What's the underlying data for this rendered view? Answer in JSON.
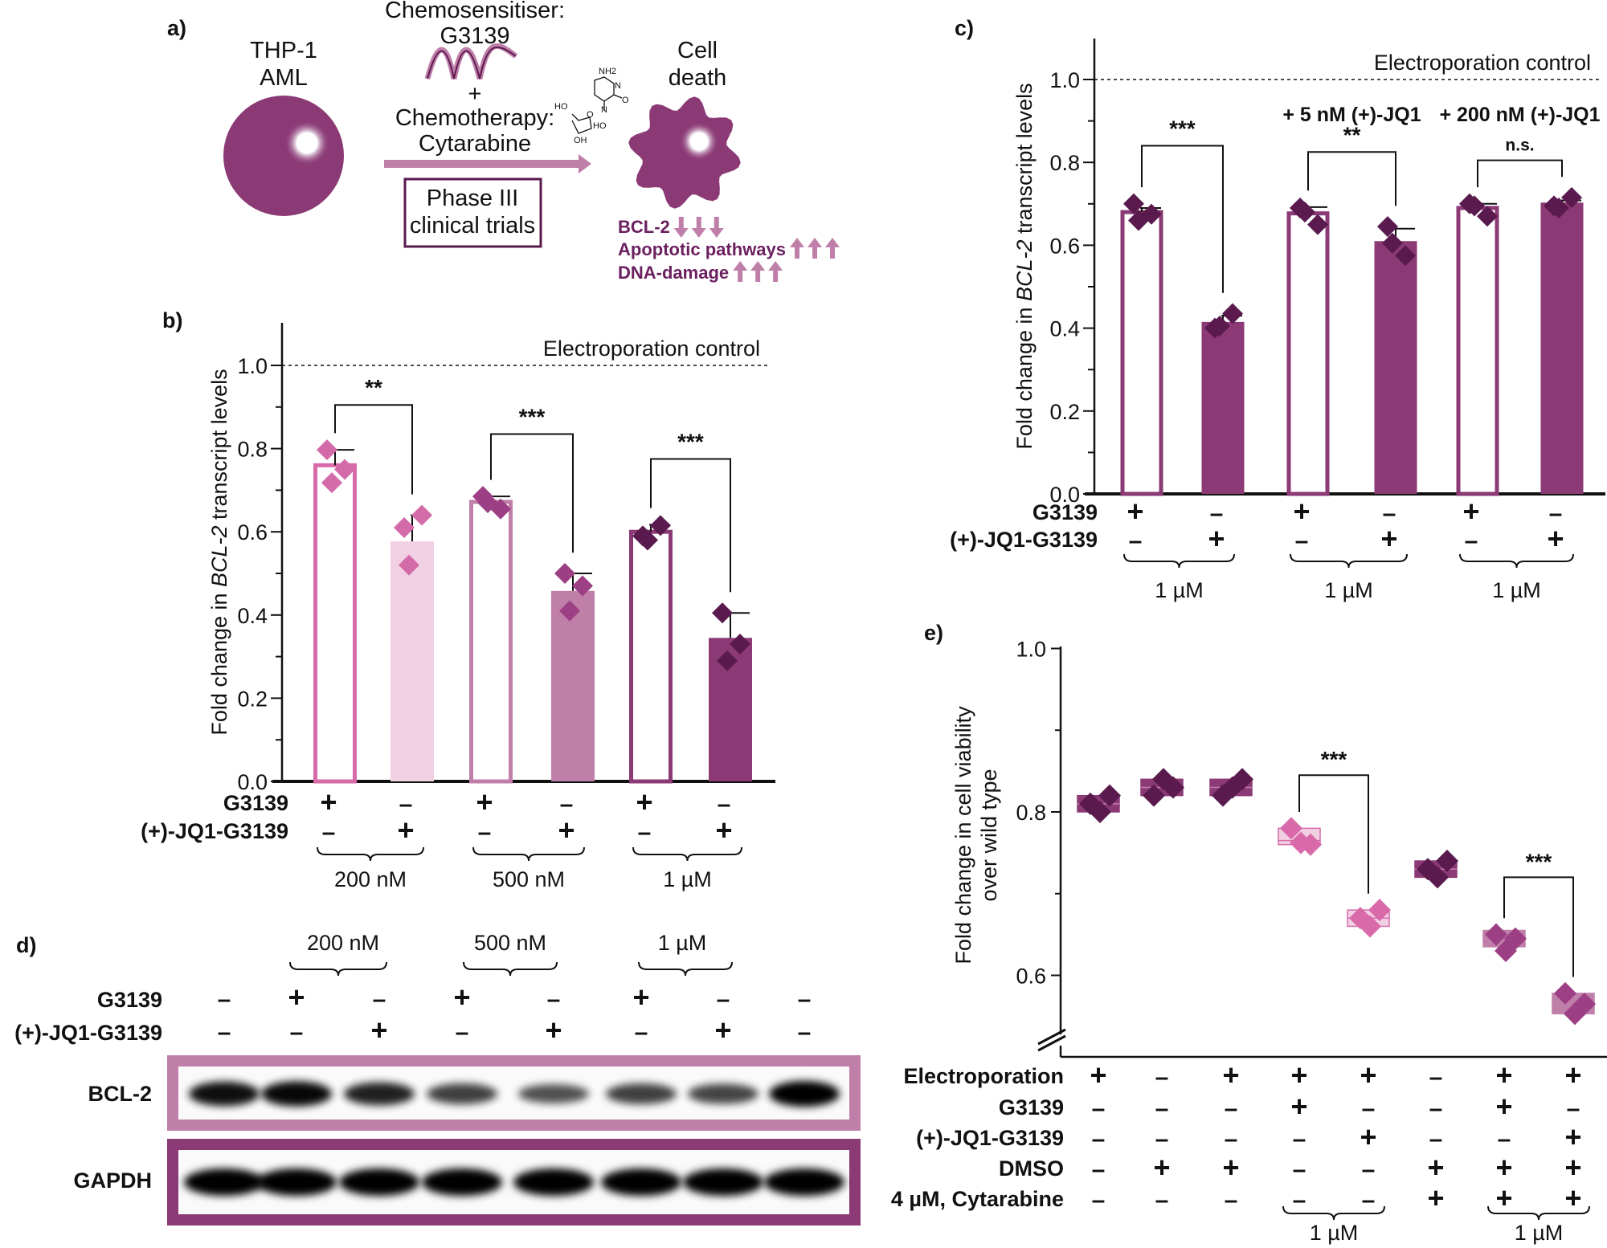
{
  "colors": {
    "light_pink": "#d96aaa",
    "pale_pink": "#f2d0e4",
    "mauve": "#c07fa9",
    "plum": "#8b3a76",
    "dark_plum": "#5a1a4e",
    "diamond_pink": "#d36ba9",
    "diamond_mauve": "#9c3f84",
    "text_plum": "#6b1f5f"
  },
  "panel_a": {
    "label": "a)",
    "cell_line": [
      "THP-1",
      "AML"
    ],
    "chemosensitiser_title": "Chemosensitiser:",
    "chemosensitiser": "G3139",
    "plus": "+",
    "chemotherapy_title": "Chemotherapy:",
    "chemotherapy": "Cytarabine",
    "trial_box": [
      "Phase III",
      "clinical trials"
    ],
    "outcome": [
      "Cell",
      "death"
    ],
    "molecule_labels": {
      "nh2": "NH2",
      "n1": "N",
      "n2": "N",
      "o_keto": "O",
      "ho1": "HO",
      "o_ring": "O",
      "ho2": "HO",
      "oh": "OH"
    },
    "effects": [
      {
        "text": "BCL-2",
        "direction": "down"
      },
      {
        "text": "Apoptotic pathways",
        "direction": "up"
      },
      {
        "text": "DNA-damage",
        "direction": "up"
      }
    ]
  },
  "panel_d": {
    "label": "d)",
    "concentrations": [
      "200 nM",
      "500 nM",
      "1 µM"
    ],
    "row_labels": [
      "G3139",
      "(+)-JQ1-G3139"
    ],
    "lanes": [
      {
        "g3139": "-",
        "jq1": "-",
        "bcl2_intensity": 0.9
      },
      {
        "g3139": "+",
        "jq1": "-",
        "bcl2_intensity": 0.95
      },
      {
        "g3139": "-",
        "jq1": "+",
        "bcl2_intensity": 0.8
      },
      {
        "g3139": "+",
        "jq1": "-",
        "bcl2_intensity": 0.62
      },
      {
        "g3139": "-",
        "jq1": "+",
        "bcl2_intensity": 0.5
      },
      {
        "g3139": "+",
        "jq1": "-",
        "bcl2_intensity": 0.62
      },
      {
        "g3139": "-",
        "jq1": "+",
        "bcl2_intensity": 0.58
      },
      {
        "g3139": "-",
        "jq1": "-",
        "bcl2_intensity": 1.0
      }
    ],
    "blots": [
      "BCL-2",
      "GAPDH"
    ]
  },
  "chart_data": [
    {
      "panel": "b)",
      "type": "bar",
      "ylabel_parts": [
        "Fold change in ",
        "BCL-2",
        " transcript levels"
      ],
      "ylim": [
        0,
        1.1
      ],
      "yticks": [
        "0.0",
        "0.2",
        "0.4",
        "0.6",
        "0.8",
        "1.0"
      ],
      "reference_line": {
        "value": 1.0,
        "label": "Electroporation control"
      },
      "row_labels": [
        "G3139",
        "(+)-JQ1-G3139"
      ],
      "bars": [
        {
          "g3139": "+",
          "jq1": "-",
          "value": 0.76,
          "error_top": 0.797,
          "points": [
            0.797,
            0.75,
            0.718
          ],
          "style": "outline",
          "color": "#d96aaa",
          "point_color": "#d36ba9"
        },
        {
          "g3139": "-",
          "jq1": "+",
          "value": 0.577,
          "error_top": 0.64,
          "points": [
            0.61,
            0.64,
            0.52
          ],
          "style": "filled",
          "color": "#f2d0e4",
          "point_color": "#d36ba9"
        },
        {
          "g3139": "+",
          "jq1": "-",
          "value": 0.672,
          "error_top": 0.685,
          "points": [
            0.685,
            0.655,
            0.67
          ],
          "style": "outline",
          "color": "#c07fa9",
          "point_color": "#9c3f84"
        },
        {
          "g3139": "-",
          "jq1": "+",
          "value": 0.458,
          "error_top": 0.5,
          "points": [
            0.5,
            0.47,
            0.41
          ],
          "style": "filled",
          "color": "#c07fa9",
          "point_color": "#9c3f84"
        },
        {
          "g3139": "+",
          "jq1": "-",
          "value": 0.6,
          "error_top": 0.617,
          "points": [
            0.59,
            0.615,
            0.58
          ],
          "style": "outline",
          "color": "#8b3a76",
          "point_color": "#5a1a4e"
        },
        {
          "g3139": "-",
          "jq1": "+",
          "value": 0.345,
          "error_top": 0.405,
          "points": [
            0.405,
            0.33,
            0.29
          ],
          "style": "filled",
          "color": "#8b3a76",
          "point_color": "#5a1a4e"
        }
      ],
      "groups": [
        {
          "label": "200 nM",
          "bars": [
            0,
            1
          ]
        },
        {
          "label": "500 nM",
          "bars": [
            2,
            3
          ]
        },
        {
          "label": "1 µM",
          "bars": [
            4,
            5
          ]
        }
      ],
      "significance": [
        {
          "bars": [
            0,
            1
          ],
          "label": "**",
          "y": 0.905
        },
        {
          "bars": [
            2,
            3
          ],
          "label": "***",
          "y": 0.835
        },
        {
          "bars": [
            4,
            5
          ],
          "label": "***",
          "y": 0.775
        }
      ],
      "headers": []
    },
    {
      "panel": "c)",
      "type": "bar",
      "ylabel_parts": [
        "Fold change in ",
        "BCL-2",
        " transcript levels"
      ],
      "ylim": [
        0,
        1.1
      ],
      "yticks": [
        "0.0",
        "0.2",
        "0.4",
        "0.6",
        "0.8",
        "1.0"
      ],
      "reference_line": {
        "value": 1.0,
        "label": "Electroporation control"
      },
      "row_labels": [
        "G3139",
        "(+)-JQ1-G3139"
      ],
      "bars": [
        {
          "g3139": "+",
          "jq1": "-",
          "value": 0.68,
          "error_top": 0.69,
          "points": [
            0.7,
            0.675,
            0.66
          ],
          "style": "outline",
          "color": "#8b3a76",
          "point_color": "#5a1a4e"
        },
        {
          "g3139": "-",
          "jq1": "+",
          "value": 0.415,
          "error_top": 0.43,
          "points": [
            0.4,
            0.435,
            0.405
          ],
          "style": "filled",
          "color": "#8b3a76",
          "point_color": "#5a1a4e"
        },
        {
          "g3139": "+",
          "jq1": "-",
          "value": 0.677,
          "error_top": 0.692,
          "points": [
            0.69,
            0.65,
            0.68
          ],
          "style": "outline",
          "color": "#8b3a76",
          "point_color": "#5a1a4e"
        },
        {
          "g3139": "-",
          "jq1": "+",
          "value": 0.61,
          "error_top": 0.64,
          "points": [
            0.645,
            0.575,
            0.605
          ],
          "style": "filled",
          "color": "#8b3a76",
          "point_color": "#5a1a4e"
        },
        {
          "g3139": "+",
          "jq1": "-",
          "value": 0.69,
          "error_top": 0.7,
          "points": [
            0.7,
            0.67,
            0.695
          ],
          "style": "outline",
          "color": "#8b3a76",
          "point_color": "#5a1a4e"
        },
        {
          "g3139": "-",
          "jq1": "+",
          "value": 0.703,
          "error_top": 0.708,
          "points": [
            0.695,
            0.715,
            0.69
          ],
          "style": "filled",
          "color": "#8b3a76",
          "point_color": "#5a1a4e"
        }
      ],
      "groups": [
        {
          "label": "1 µM",
          "bars": [
            0,
            1
          ]
        },
        {
          "label": "1 µM",
          "bars": [
            2,
            3
          ]
        },
        {
          "label": "1 µM",
          "bars": [
            4,
            5
          ]
        }
      ],
      "significance": [
        {
          "bars": [
            0,
            1
          ],
          "label": "***",
          "y": 0.84
        },
        {
          "bars": [
            2,
            3
          ],
          "label": "**",
          "y": 0.825
        },
        {
          "bars": [
            4,
            5
          ],
          "label": "n.s.",
          "y": 0.805
        }
      ],
      "headers": [
        {
          "label": "+ 5 nM (+)-JQ1",
          "bars": [
            2,
            3
          ],
          "y": 0.915
        },
        {
          "label": "+ 200 nM (+)-JQ1",
          "bars": [
            4,
            5
          ],
          "y": 0.915
        }
      ]
    },
    {
      "panel": "e)",
      "type": "scatter",
      "ylabel_lines": [
        "Fold change in cell viability",
        "over wild type"
      ],
      "ylim": [
        0.5,
        1.0
      ],
      "yticks": [
        "0.6",
        "0.8",
        "1.0"
      ],
      "axis_break": true,
      "row_labels": [
        "Electroporation",
        "G3139",
        "(+)-JQ1-G3139",
        "DMSO",
        "4 µM, Cytarabine"
      ],
      "columns": [
        {
          "signs": [
            "+",
            "-",
            "-",
            "-",
            "-"
          ],
          "mean": 0.81,
          "box": [
            0.8,
            0.82
          ],
          "points": [
            0.81,
            0.82,
            0.8
          ],
          "fill": "#8b3a76",
          "point_color": "#5a1a4e"
        },
        {
          "signs": [
            "-",
            "-",
            "-",
            "+",
            "-"
          ],
          "mean": 0.83,
          "box": [
            0.82,
            0.84
          ],
          "points": [
            0.82,
            0.83,
            0.84
          ],
          "fill": "#8b3a76",
          "point_color": "#5a1a4e"
        },
        {
          "signs": [
            "+",
            "-",
            "-",
            "+",
            "-"
          ],
          "mean": 0.83,
          "box": [
            0.82,
            0.84
          ],
          "points": [
            0.82,
            0.84,
            0.83
          ],
          "fill": "#8b3a76",
          "point_color": "#5a1a4e"
        },
        {
          "signs": [
            "+",
            "+",
            "-",
            "-",
            "-"
          ],
          "mean": 0.765,
          "box": [
            0.76,
            0.78
          ],
          "points": [
            0.78,
            0.76,
            0.762
          ],
          "fill": "#f2d0e4",
          "point_color": "#d96aaa"
        },
        {
          "signs": [
            "+",
            "-",
            "+",
            "-",
            "-"
          ],
          "mean": 0.67,
          "box": [
            0.66,
            0.68
          ],
          "points": [
            0.67,
            0.68,
            0.66
          ],
          "fill": "#f2d0e4",
          "point_color": "#d96aaa"
        },
        {
          "signs": [
            "-",
            "-",
            "-",
            "+",
            "+"
          ],
          "mean": 0.73,
          "box": [
            0.72,
            0.74
          ],
          "points": [
            0.73,
            0.74,
            0.72
          ],
          "fill": "#8b3a76",
          "point_color": "#5a1a4e"
        },
        {
          "signs": [
            "+",
            "+",
            "-",
            "+",
            "+"
          ],
          "mean": 0.645,
          "box": [
            0.635,
            0.655
          ],
          "points": [
            0.65,
            0.645,
            0.63
          ],
          "fill": "#c07fa9",
          "point_color": "#9c3f84"
        },
        {
          "signs": [
            "+",
            "-",
            "+",
            "+",
            "+"
          ],
          "mean": 0.565,
          "box": [
            0.553,
            0.578
          ],
          "points": [
            0.578,
            0.565,
            0.553
          ],
          "fill": "#c07fa9",
          "point_color": "#9c3f84"
        }
      ],
      "groups": [
        {
          "label": "1 µM",
          "columns": [
            3,
            4
          ]
        },
        {
          "label": "1 µM",
          "columns": [
            6,
            7
          ]
        }
      ],
      "significance": [
        {
          "columns": [
            3,
            4
          ],
          "label": "***",
          "y": 0.845
        },
        {
          "columns": [
            6,
            7
          ],
          "label": "***",
          "y": 0.72
        }
      ]
    }
  ]
}
